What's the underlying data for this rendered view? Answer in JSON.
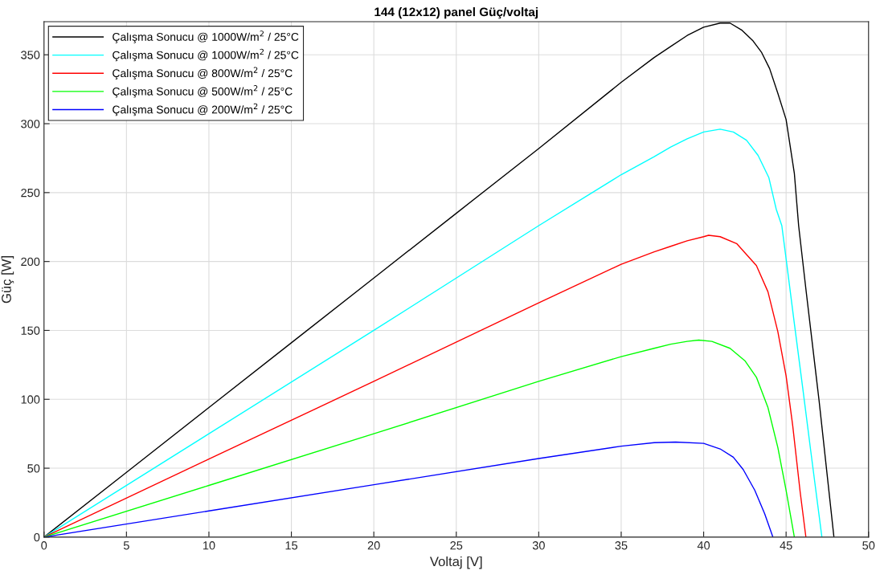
{
  "chart_data": {
    "type": "line",
    "title": "144 (12x12) panel Güç/voltaj",
    "xlabel": "Voltaj [V]",
    "ylabel": "Güç [W]",
    "xlim": [
      0,
      50
    ],
    "ylim": [
      0,
      374
    ],
    "xticks": [
      0,
      5,
      10,
      15,
      20,
      25,
      30,
      35,
      40,
      45,
      50
    ],
    "yticks": [
      0,
      50,
      100,
      150,
      200,
      250,
      300,
      350
    ],
    "grid": true,
    "legend": "top left",
    "marker": "none",
    "line_style": "solid",
    "series": [
      {
        "name": "Çalışma Sonucu @ 1000W/m$^{2}$ / 25°C",
        "color": "#000000",
        "x": [
          0,
          5,
          10,
          15,
          20,
          25,
          30,
          35,
          37,
          38,
          39,
          40,
          41,
          41.6,
          42.3,
          43,
          43.5,
          44,
          44.5,
          45,
          45.5,
          45.76,
          46.2,
          47,
          47.9
        ],
        "values": [
          0,
          47,
          94,
          141,
          188,
          235,
          282,
          330,
          348,
          356,
          364,
          370,
          373,
          373,
          368,
          360,
          352,
          340,
          322,
          303,
          264,
          226,
          180,
          99,
          0
        ]
      },
      {
        "name": "Çalışma Sonucu @ 1000W/m$^{2}$ / 25°C",
        "color": "#00ffff",
        "x": [
          0,
          10,
          20,
          30,
          35,
          37,
          38,
          39,
          40,
          41,
          41.8,
          42.6,
          43.3,
          43.95,
          44.4,
          44.74,
          45,
          45.5,
          46,
          46.5,
          47.17
        ],
        "values": [
          0,
          75,
          150,
          226,
          263,
          276,
          283,
          289,
          294,
          296,
          294,
          288,
          277,
          261,
          238,
          226,
          202,
          155,
          109,
          62,
          0
        ]
      },
      {
        "name": "Çalışma Sonucu @ 800W/m$^{2}$ / 25°C",
        "color": "#ff0000",
        "x": [
          0,
          10,
          20,
          30,
          35,
          37,
          38,
          39,
          40,
          40.3,
          41,
          42,
          43.2,
          43.9,
          44.5,
          45,
          45.4,
          45.85,
          46.2
        ],
        "values": [
          0,
          56.6,
          113,
          170,
          198,
          207,
          211,
          215,
          218,
          219,
          218,
          213,
          197,
          178,
          149,
          117,
          81,
          33,
          0
        ]
      },
      {
        "name": "Çalışma Sonucu @ 500W/m$^{2}$ / 25°C",
        "color": "#00ff00",
        "x": [
          0,
          10,
          20,
          30,
          35,
          37,
          38,
          39,
          39.7,
          40.5,
          41.6,
          42.5,
          43.2,
          43.9,
          44.5,
          45,
          45.5
        ],
        "values": [
          0,
          37.5,
          75,
          113,
          131,
          137,
          140,
          142,
          143,
          142,
          137,
          128,
          116,
          94,
          65,
          34,
          0
        ]
      },
      {
        "name": "Çalışma Sonucu @ 200W/m$^{2}$ / 25°C",
        "color": "#0000ff",
        "x": [
          0,
          10,
          20,
          30,
          35,
          37,
          38.3,
          40,
          41,
          41.8,
          42.4,
          43.1,
          43.7,
          44.2
        ],
        "values": [
          0,
          19,
          38,
          57,
          66,
          68.5,
          69,
          68,
          64,
          58,
          49,
          34,
          17,
          0
        ]
      }
    ]
  }
}
